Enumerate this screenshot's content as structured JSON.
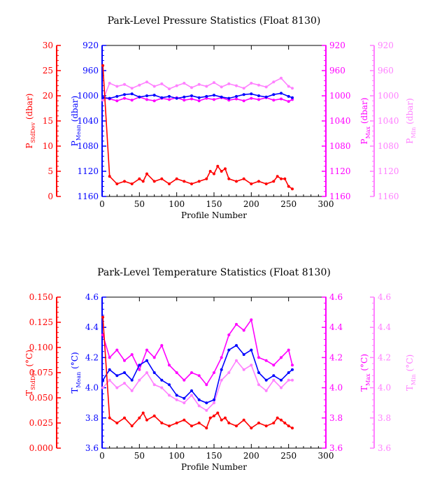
{
  "chart_data": [
    {
      "type": "line",
      "title": "Park-Level Pressure Statistics (Float 8130)",
      "xlabel": "Profile Number",
      "xlim": [
        0,
        300
      ],
      "x_ticks": [
        "0",
        "50",
        "100",
        "150",
        "200",
        "250",
        "300"
      ],
      "grid": false,
      "axes": [
        {
          "id": "stddev",
          "side": "left-outer",
          "color": "#ff0000",
          "label_main": "P",
          "label_sub": "StdDev",
          "label_unit": " (dbar)",
          "lim": [
            0,
            30
          ],
          "inverted": false,
          "ticks": [
            "0",
            "5",
            "10",
            "15",
            "20",
            "25",
            "30"
          ]
        },
        {
          "id": "mean",
          "side": "left-inner",
          "color": "#0000ff",
          "label_main": "P",
          "label_sub": "Mean",
          "label_unit": " (dbar)",
          "lim": [
            920,
            1160
          ],
          "inverted": true,
          "ticks": [
            "920",
            "960",
            "1000",
            "1040",
            "1080",
            "1120",
            "1160"
          ]
        },
        {
          "id": "max",
          "side": "right-inner",
          "color": "#ff00ff",
          "label_main": "P",
          "label_sub": "Max",
          "label_unit": " (dbar)",
          "lim": [
            920,
            1160
          ],
          "inverted": true,
          "ticks": [
            "920",
            "960",
            "1000",
            "1040",
            "1080",
            "1120",
            "1160"
          ]
        },
        {
          "id": "min",
          "side": "right-outer",
          "color": "#ff80ff",
          "label_main": "P",
          "label_sub": "Min",
          "label_unit": " (dbar)",
          "lim": [
            920,
            1160
          ],
          "inverted": true,
          "ticks": [
            "920",
            "960",
            "1000",
            "1040",
            "1080",
            "1120",
            "1160"
          ]
        }
      ],
      "series": [
        {
          "axis": "min",
          "color": "#ff80ff",
          "x": [
            1,
            10,
            20,
            30,
            40,
            50,
            60,
            70,
            80,
            90,
            100,
            110,
            120,
            130,
            140,
            150,
            160,
            170,
            180,
            190,
            200,
            210,
            220,
            230,
            240,
            250,
            255
          ],
          "y": [
            1007,
            980,
            985,
            982,
            988,
            983,
            978,
            985,
            981,
            989,
            984,
            980,
            987,
            982,
            985,
            979,
            986,
            981,
            984,
            988,
            980,
            983,
            986,
            978,
            972,
            985,
            988
          ]
        },
        {
          "axis": "max",
          "color": "#ff00ff",
          "x": [
            1,
            10,
            20,
            30,
            40,
            50,
            60,
            70,
            80,
            90,
            100,
            110,
            120,
            130,
            140,
            150,
            160,
            170,
            180,
            190,
            200,
            210,
            220,
            230,
            240,
            250,
            255
          ],
          "y": [
            1003,
            1005,
            1008,
            1004,
            1007,
            1002,
            1006,
            1008,
            1004,
            1006,
            1003,
            1007,
            1005,
            1008,
            1004,
            1006,
            1003,
            1007,
            1005,
            1008,
            1004,
            1006,
            1003,
            1007,
            1005,
            1009,
            1006
          ]
        },
        {
          "axis": "mean",
          "color": "#0000ff",
          "x": [
            1,
            10,
            20,
            30,
            40,
            50,
            60,
            70,
            80,
            90,
            100,
            110,
            120,
            130,
            140,
            150,
            160,
            170,
            180,
            190,
            200,
            210,
            220,
            230,
            240,
            250,
            255
          ],
          "y": [
            1003,
            1004,
            1001,
            998,
            997,
            1002,
            1000,
            999,
            1003,
            1001,
            1004,
            1002,
            1000,
            1003,
            1001,
            999,
            1002,
            1004,
            1001,
            998,
            997,
            1000,
            1002,
            998,
            996,
            1001,
            1003
          ]
        },
        {
          "axis": "stddev",
          "color": "#ff0000",
          "x": [
            1,
            10,
            20,
            30,
            40,
            50,
            55,
            60,
            70,
            80,
            90,
            100,
            110,
            120,
            130,
            140,
            145,
            150,
            155,
            160,
            165,
            170,
            180,
            190,
            200,
            210,
            220,
            230,
            235,
            240,
            245,
            250,
            255
          ],
          "y": [
            26,
            4,
            2.5,
            3,
            2.5,
            3.5,
            3,
            4.5,
            3,
            3.5,
            2.5,
            3.5,
            3,
            2.5,
            3,
            3.5,
            5,
            4.5,
            6,
            5,
            5.5,
            3.5,
            3,
            3.5,
            2.5,
            3,
            2.5,
            3,
            4,
            3.5,
            3.5,
            2,
            1.5
          ]
        }
      ]
    },
    {
      "type": "line",
      "title": "Park-Level Temperature Statistics (Float 8130)",
      "xlabel": "Profile Number",
      "xlim": [
        0,
        300
      ],
      "x_ticks": [
        "0",
        "50",
        "100",
        "150",
        "200",
        "250",
        "300"
      ],
      "grid": false,
      "axes": [
        {
          "id": "stddev",
          "side": "left-outer",
          "color": "#ff0000",
          "label_main": "T",
          "label_sub": "StdDev",
          "label_unit": " (°C)",
          "lim": [
            0.0,
            0.15
          ],
          "inverted": false,
          "ticks": [
            "0.000",
            "0.025",
            "0.050",
            "0.075",
            "0.100",
            "0.125",
            "0.150"
          ]
        },
        {
          "id": "mean",
          "side": "left-inner",
          "color": "#0000ff",
          "label_main": "T",
          "label_sub": "Mean",
          "label_unit": " (°C)",
          "lim": [
            3.6,
            4.6
          ],
          "inverted": false,
          "ticks": [
            "3.6",
            "3.8",
            "4.0",
            "4.2",
            "4.4",
            "4.6"
          ]
        },
        {
          "id": "max",
          "side": "right-inner",
          "color": "#ff00ff",
          "label_main": "T",
          "label_sub": "Max",
          "label_unit": " (°C)",
          "lim": [
            3.6,
            4.6
          ],
          "inverted": false,
          "ticks": [
            "3.6",
            "3.8",
            "4.0",
            "4.2",
            "4.4",
            "4.6"
          ]
        },
        {
          "id": "min",
          "side": "right-outer",
          "color": "#ff80ff",
          "label_main": "T",
          "label_sub": "Min",
          "label_unit": " (°C)",
          "lim": [
            3.6,
            4.6
          ],
          "inverted": false,
          "ticks": [
            "3.6",
            "3.8",
            "4.0",
            "4.2",
            "4.4",
            "4.6"
          ]
        }
      ],
      "series": [
        {
          "axis": "max",
          "color": "#ff00ff",
          "x": [
            1,
            10,
            20,
            30,
            40,
            50,
            60,
            70,
            80,
            90,
            100,
            110,
            120,
            130,
            140,
            150,
            160,
            170,
            180,
            190,
            200,
            210,
            220,
            230,
            240,
            250,
            255
          ],
          "y": [
            4.35,
            4.2,
            4.25,
            4.18,
            4.22,
            4.12,
            4.25,
            4.2,
            4.28,
            4.15,
            4.1,
            4.05,
            4.1,
            4.08,
            4.02,
            4.1,
            4.2,
            4.35,
            4.42,
            4.38,
            4.45,
            4.2,
            4.18,
            4.15,
            4.2,
            4.25,
            4.15
          ]
        },
        {
          "axis": "min",
          "color": "#ff80ff",
          "x": [
            1,
            10,
            20,
            30,
            40,
            50,
            60,
            70,
            80,
            90,
            100,
            110,
            120,
            130,
            140,
            150,
            160,
            170,
            180,
            190,
            200,
            210,
            220,
            230,
            240,
            250,
            255
          ],
          "y": [
            4.0,
            4.05,
            4.0,
            4.03,
            3.98,
            4.05,
            4.1,
            4.02,
            4.0,
            3.95,
            3.92,
            3.9,
            3.95,
            3.88,
            3.85,
            3.9,
            4.05,
            4.1,
            4.18,
            4.12,
            4.15,
            4.02,
            3.98,
            4.05,
            4.0,
            4.05,
            4.05
          ]
        },
        {
          "axis": "mean",
          "color": "#0000ff",
          "x": [
            1,
            10,
            20,
            30,
            40,
            50,
            60,
            70,
            80,
            90,
            100,
            110,
            120,
            130,
            140,
            150,
            160,
            170,
            180,
            190,
            200,
            210,
            220,
            230,
            240,
            250,
            255
          ],
          "y": [
            4.05,
            4.12,
            4.08,
            4.1,
            4.05,
            4.15,
            4.18,
            4.1,
            4.05,
            4.02,
            3.95,
            3.93,
            3.98,
            3.92,
            3.9,
            3.92,
            4.12,
            4.25,
            4.28,
            4.22,
            4.25,
            4.1,
            4.05,
            4.08,
            4.05,
            4.1,
            4.12
          ]
        },
        {
          "axis": "stddev",
          "color": "#ff0000",
          "x": [
            1,
            10,
            20,
            30,
            40,
            50,
            55,
            60,
            70,
            80,
            90,
            100,
            110,
            120,
            130,
            140,
            145,
            150,
            155,
            160,
            165,
            170,
            180,
            190,
            200,
            210,
            220,
            230,
            235,
            240,
            245,
            250,
            255
          ],
          "y": [
            0.13,
            0.03,
            0.025,
            0.03,
            0.022,
            0.03,
            0.035,
            0.028,
            0.032,
            0.025,
            0.022,
            0.025,
            0.028,
            0.022,
            0.025,
            0.02,
            0.03,
            0.032,
            0.035,
            0.028,
            0.03,
            0.025,
            0.022,
            0.028,
            0.02,
            0.025,
            0.022,
            0.025,
            0.03,
            0.028,
            0.025,
            0.022,
            0.02
          ]
        }
      ]
    }
  ]
}
